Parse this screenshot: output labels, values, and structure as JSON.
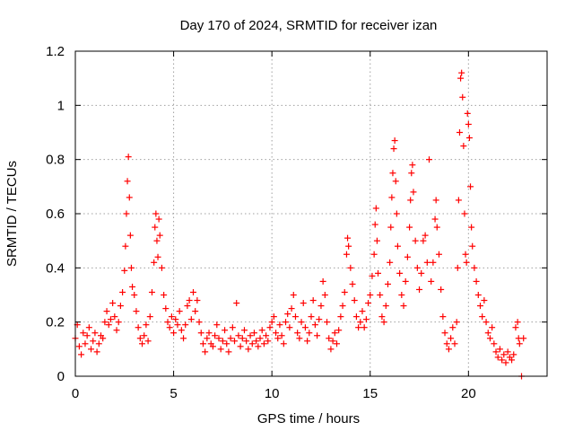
{
  "chart_data": {
    "type": "scatter",
    "title": "Day 170 of 2024, SRMTID for receiver izan",
    "xlabel": "GPS time / hours",
    "ylabel": "SRMTID / TECUs",
    "xlim": [
      0,
      24
    ],
    "ylim": [
      0,
      1.2
    ],
    "xticks": [
      0,
      5,
      10,
      15,
      20
    ],
    "yticks": [
      0,
      0.2,
      0.4,
      0.6,
      0.8,
      1.0,
      1.2
    ],
    "xtick_labels": [
      "0",
      "5",
      "10",
      "15",
      "20"
    ],
    "ytick_labels": [
      "0",
      "0.2",
      "0.4",
      "0.6",
      "0.8",
      "1",
      "1.2"
    ],
    "grid": true,
    "marker": "+",
    "color": "#ff0000",
    "series": [
      {
        "name": "SRMTID",
        "points": [
          [
            0.0,
            0.14
          ],
          [
            0.1,
            0.19
          ],
          [
            0.2,
            0.11
          ],
          [
            0.3,
            0.08
          ],
          [
            0.4,
            0.16
          ],
          [
            0.5,
            0.12
          ],
          [
            0.6,
            0.15
          ],
          [
            0.7,
            0.18
          ],
          [
            0.8,
            0.1
          ],
          [
            0.9,
            0.13
          ],
          [
            1.0,
            0.16
          ],
          [
            1.1,
            0.09
          ],
          [
            1.2,
            0.12
          ],
          [
            1.3,
            0.15
          ],
          [
            1.4,
            0.14
          ],
          [
            1.5,
            0.2
          ],
          [
            1.6,
            0.24
          ],
          [
            1.7,
            0.19
          ],
          [
            1.8,
            0.21
          ],
          [
            1.9,
            0.27
          ],
          [
            2.0,
            0.22
          ],
          [
            2.1,
            0.17
          ],
          [
            2.2,
            0.2
          ],
          [
            2.3,
            0.26
          ],
          [
            2.4,
            0.31
          ],
          [
            2.5,
            0.39
          ],
          [
            2.55,
            0.48
          ],
          [
            2.6,
            0.6
          ],
          [
            2.65,
            0.72
          ],
          [
            2.7,
            0.81
          ],
          [
            2.75,
            0.66
          ],
          [
            2.8,
            0.52
          ],
          [
            2.85,
            0.4
          ],
          [
            2.9,
            0.33
          ],
          [
            3.0,
            0.3
          ],
          [
            3.1,
            0.24
          ],
          [
            3.2,
            0.18
          ],
          [
            3.3,
            0.14
          ],
          [
            3.4,
            0.12
          ],
          [
            3.5,
            0.15
          ],
          [
            3.6,
            0.19
          ],
          [
            3.7,
            0.13
          ],
          [
            3.8,
            0.22
          ],
          [
            3.9,
            0.31
          ],
          [
            4.0,
            0.42
          ],
          [
            4.05,
            0.55
          ],
          [
            4.1,
            0.6
          ],
          [
            4.15,
            0.5
          ],
          [
            4.2,
            0.44
          ],
          [
            4.25,
            0.58
          ],
          [
            4.3,
            0.52
          ],
          [
            4.4,
            0.4
          ],
          [
            4.5,
            0.3
          ],
          [
            4.6,
            0.25
          ],
          [
            4.7,
            0.2
          ],
          [
            4.8,
            0.18
          ],
          [
            4.9,
            0.22
          ],
          [
            5.0,
            0.16
          ],
          [
            5.1,
            0.21
          ],
          [
            5.2,
            0.19
          ],
          [
            5.3,
            0.24
          ],
          [
            5.4,
            0.17
          ],
          [
            5.5,
            0.14
          ],
          [
            5.6,
            0.19
          ],
          [
            5.7,
            0.26
          ],
          [
            5.8,
            0.28
          ],
          [
            5.9,
            0.21
          ],
          [
            6.0,
            0.31
          ],
          [
            6.1,
            0.24
          ],
          [
            6.2,
            0.28
          ],
          [
            6.3,
            0.2
          ],
          [
            6.4,
            0.16
          ],
          [
            6.5,
            0.12
          ],
          [
            6.6,
            0.09
          ],
          [
            6.7,
            0.14
          ],
          [
            6.8,
            0.16
          ],
          [
            6.9,
            0.12
          ],
          [
            7.0,
            0.11
          ],
          [
            7.1,
            0.15
          ],
          [
            7.2,
            0.19
          ],
          [
            7.3,
            0.14
          ],
          [
            7.4,
            0.1
          ],
          [
            7.5,
            0.13
          ],
          [
            7.6,
            0.17
          ],
          [
            7.7,
            0.12
          ],
          [
            7.8,
            0.09
          ],
          [
            7.9,
            0.14
          ],
          [
            8.0,
            0.18
          ],
          [
            8.1,
            0.13
          ],
          [
            8.2,
            0.27
          ],
          [
            8.3,
            0.15
          ],
          [
            8.4,
            0.11
          ],
          [
            8.5,
            0.14
          ],
          [
            8.6,
            0.17
          ],
          [
            8.7,
            0.13
          ],
          [
            8.8,
            0.1
          ],
          [
            8.9,
            0.15
          ],
          [
            9.0,
            0.12
          ],
          [
            9.1,
            0.16
          ],
          [
            9.2,
            0.13
          ],
          [
            9.3,
            0.11
          ],
          [
            9.4,
            0.14
          ],
          [
            9.5,
            0.17
          ],
          [
            9.6,
            0.12
          ],
          [
            9.7,
            0.15
          ],
          [
            9.8,
            0.13
          ],
          [
            9.9,
            0.18
          ],
          [
            10.0,
            0.2
          ],
          [
            10.1,
            0.22
          ],
          [
            10.2,
            0.16
          ],
          [
            10.3,
            0.14
          ],
          [
            10.4,
            0.19
          ],
          [
            10.5,
            0.15
          ],
          [
            10.6,
            0.12
          ],
          [
            10.7,
            0.2
          ],
          [
            10.8,
            0.23
          ],
          [
            10.9,
            0.18
          ],
          [
            11.0,
            0.25
          ],
          [
            11.1,
            0.3
          ],
          [
            11.2,
            0.22
          ],
          [
            11.3,
            0.16
          ],
          [
            11.4,
            0.14
          ],
          [
            11.5,
            0.2
          ],
          [
            11.6,
            0.27
          ],
          [
            11.7,
            0.18
          ],
          [
            11.8,
            0.13
          ],
          [
            11.9,
            0.16
          ],
          [
            12.0,
            0.22
          ],
          [
            12.1,
            0.28
          ],
          [
            12.2,
            0.19
          ],
          [
            12.3,
            0.15
          ],
          [
            12.4,
            0.21
          ],
          [
            12.5,
            0.26
          ],
          [
            12.6,
            0.35
          ],
          [
            12.7,
            0.3
          ],
          [
            12.8,
            0.2
          ],
          [
            12.9,
            0.14
          ],
          [
            13.0,
            0.1
          ],
          [
            13.1,
            0.13
          ],
          [
            13.2,
            0.16
          ],
          [
            13.3,
            0.12
          ],
          [
            13.4,
            0.17
          ],
          [
            13.5,
            0.22
          ],
          [
            13.6,
            0.26
          ],
          [
            13.7,
            0.31
          ],
          [
            13.8,
            0.45
          ],
          [
            13.85,
            0.51
          ],
          [
            13.9,
            0.48
          ],
          [
            14.0,
            0.4
          ],
          [
            14.1,
            0.34
          ],
          [
            14.2,
            0.28
          ],
          [
            14.3,
            0.22
          ],
          [
            14.4,
            0.18
          ],
          [
            14.5,
            0.2
          ],
          [
            14.6,
            0.24
          ],
          [
            14.7,
            0.18
          ],
          [
            14.8,
            0.21
          ],
          [
            14.9,
            0.27
          ],
          [
            15.0,
            0.3
          ],
          [
            15.1,
            0.37
          ],
          [
            15.2,
            0.45
          ],
          [
            15.25,
            0.56
          ],
          [
            15.3,
            0.62
          ],
          [
            15.35,
            0.5
          ],
          [
            15.4,
            0.38
          ],
          [
            15.5,
            0.3
          ],
          [
            15.6,
            0.22
          ],
          [
            15.7,
            0.2
          ],
          [
            15.8,
            0.26
          ],
          [
            15.9,
            0.34
          ],
          [
            16.0,
            0.42
          ],
          [
            16.05,
            0.55
          ],
          [
            16.1,
            0.66
          ],
          [
            16.15,
            0.75
          ],
          [
            16.2,
            0.84
          ],
          [
            16.25,
            0.87
          ],
          [
            16.3,
            0.72
          ],
          [
            16.35,
            0.6
          ],
          [
            16.4,
            0.48
          ],
          [
            16.5,
            0.38
          ],
          [
            16.6,
            0.3
          ],
          [
            16.7,
            0.26
          ],
          [
            16.8,
            0.35
          ],
          [
            16.9,
            0.44
          ],
          [
            17.0,
            0.55
          ],
          [
            17.05,
            0.65
          ],
          [
            17.1,
            0.75
          ],
          [
            17.15,
            0.78
          ],
          [
            17.2,
            0.68
          ],
          [
            17.3,
            0.5
          ],
          [
            17.4,
            0.4
          ],
          [
            17.5,
            0.32
          ],
          [
            17.6,
            0.38
          ],
          [
            17.7,
            0.5
          ],
          [
            17.8,
            0.52
          ],
          [
            17.9,
            0.42
          ],
          [
            18.0,
            0.8
          ],
          [
            18.1,
            0.35
          ],
          [
            18.2,
            0.42
          ],
          [
            18.3,
            0.58
          ],
          [
            18.35,
            0.65
          ],
          [
            18.4,
            0.55
          ],
          [
            18.5,
            0.45
          ],
          [
            18.6,
            0.32
          ],
          [
            18.7,
            0.22
          ],
          [
            18.8,
            0.16
          ],
          [
            18.9,
            0.12
          ],
          [
            19.0,
            0.1
          ],
          [
            19.1,
            0.14
          ],
          [
            19.2,
            0.18
          ],
          [
            19.3,
            0.12
          ],
          [
            19.4,
            0.2
          ],
          [
            19.45,
            0.4
          ],
          [
            19.5,
            0.65
          ],
          [
            19.55,
            0.9
          ],
          [
            19.6,
            1.1
          ],
          [
            19.65,
            1.12
          ],
          [
            19.7,
            1.03
          ],
          [
            19.75,
            0.85
          ],
          [
            19.8,
            0.6
          ],
          [
            19.85,
            0.45
          ],
          [
            19.9,
            0.42
          ],
          [
            19.95,
            0.97
          ],
          [
            20.0,
            0.93
          ],
          [
            20.05,
            0.88
          ],
          [
            20.1,
            0.7
          ],
          [
            20.15,
            0.55
          ],
          [
            20.2,
            0.48
          ],
          [
            20.3,
            0.4
          ],
          [
            20.4,
            0.35
          ],
          [
            20.5,
            0.3
          ],
          [
            20.6,
            0.26
          ],
          [
            20.7,
            0.22
          ],
          [
            20.8,
            0.28
          ],
          [
            20.9,
            0.2
          ],
          [
            21.0,
            0.16
          ],
          [
            21.1,
            0.14
          ],
          [
            21.2,
            0.18
          ],
          [
            21.3,
            0.12
          ],
          [
            21.4,
            0.09
          ],
          [
            21.5,
            0.07
          ],
          [
            21.6,
            0.1
          ],
          [
            21.7,
            0.06
          ],
          [
            21.8,
            0.08
          ],
          [
            21.9,
            0.05
          ],
          [
            22.0,
            0.09
          ],
          [
            22.1,
            0.07
          ],
          [
            22.2,
            0.06
          ],
          [
            22.3,
            0.08
          ],
          [
            22.4,
            0.18
          ],
          [
            22.5,
            0.2
          ],
          [
            22.55,
            0.14
          ],
          [
            22.6,
            0.12
          ],
          [
            22.7,
            0.0
          ],
          [
            22.8,
            0.14
          ]
        ]
      }
    ]
  }
}
